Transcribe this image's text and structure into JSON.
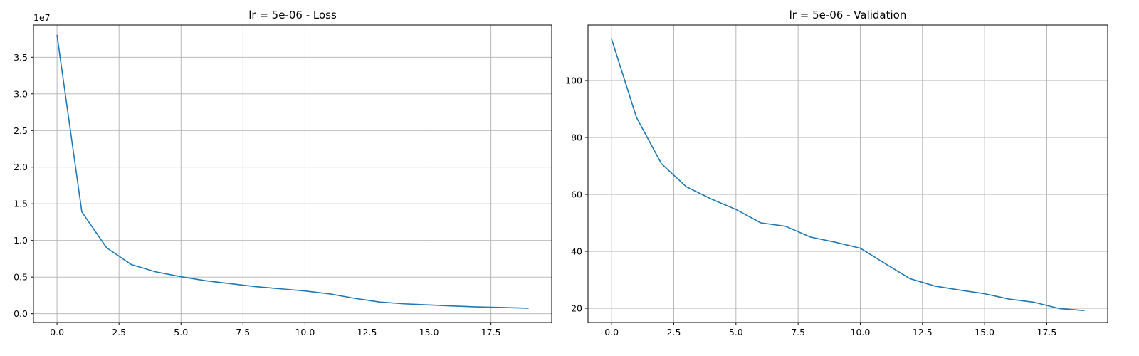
{
  "chart_data": [
    {
      "type": "line",
      "title": "lr = 5e-06 - Loss",
      "xlabel": "",
      "ylabel": "",
      "grid": true,
      "y_offset_label": "1e7",
      "xlim": [
        -0.95,
        19.95
      ],
      "ylim": [
        -0.12,
        3.94
      ],
      "xticks": [
        0.0,
        2.5,
        5.0,
        7.5,
        10.0,
        12.5,
        15.0,
        17.5
      ],
      "xtick_labels": [
        "0.0",
        "2.5",
        "5.0",
        "7.5",
        "10.0",
        "12.5",
        "15.0",
        "17.5"
      ],
      "yticks": [
        0.0,
        0.5,
        1.0,
        1.5,
        2.0,
        2.5,
        3.0,
        3.5
      ],
      "ytick_labels": [
        "0.0",
        "0.5",
        "1.0",
        "1.5",
        "2.0",
        "2.5",
        "3.0",
        "3.5"
      ],
      "color": "#1f77b4",
      "x": [
        0,
        1,
        2,
        3,
        4,
        5,
        6,
        7,
        8,
        9,
        10,
        11,
        12,
        13,
        14,
        15,
        16,
        17,
        18,
        19
      ],
      "values": [
        3.8,
        1.39,
        0.9,
        0.67,
        0.57,
        0.505,
        0.45,
        0.41,
        0.37,
        0.34,
        0.31,
        0.27,
        0.21,
        0.16,
        0.135,
        0.12,
        0.105,
        0.092,
        0.085,
        0.075
      ]
    },
    {
      "type": "line",
      "title": "lr = 5e-06 - Validation",
      "xlabel": "",
      "ylabel": "",
      "grid": true,
      "xlim": [
        -0.95,
        19.95
      ],
      "ylim": [
        15,
        119.5
      ],
      "xticks": [
        0.0,
        2.5,
        5.0,
        7.5,
        10.0,
        12.5,
        15.0,
        17.5
      ],
      "xtick_labels": [
        "0.0",
        "2.5",
        "5.0",
        "7.5",
        "10.0",
        "12.5",
        "15.0",
        "17.5"
      ],
      "yticks": [
        20,
        40,
        60,
        80,
        100
      ],
      "ytick_labels": [
        "20",
        "40",
        "60",
        "80",
        "100"
      ],
      "color": "#1f77b4",
      "x": [
        0,
        1,
        2,
        3,
        4,
        5,
        6,
        7,
        8,
        9,
        10,
        11,
        12,
        13,
        14,
        15,
        16,
        17,
        18,
        19
      ],
      "values": [
        114.5,
        87,
        70.8,
        62.7,
        58.4,
        54.7,
        50,
        48.8,
        45,
        43.2,
        41.1,
        35.7,
        30.4,
        27.8,
        26.4,
        25.1,
        23.2,
        22.1,
        19.9,
        19.2
      ]
    }
  ]
}
